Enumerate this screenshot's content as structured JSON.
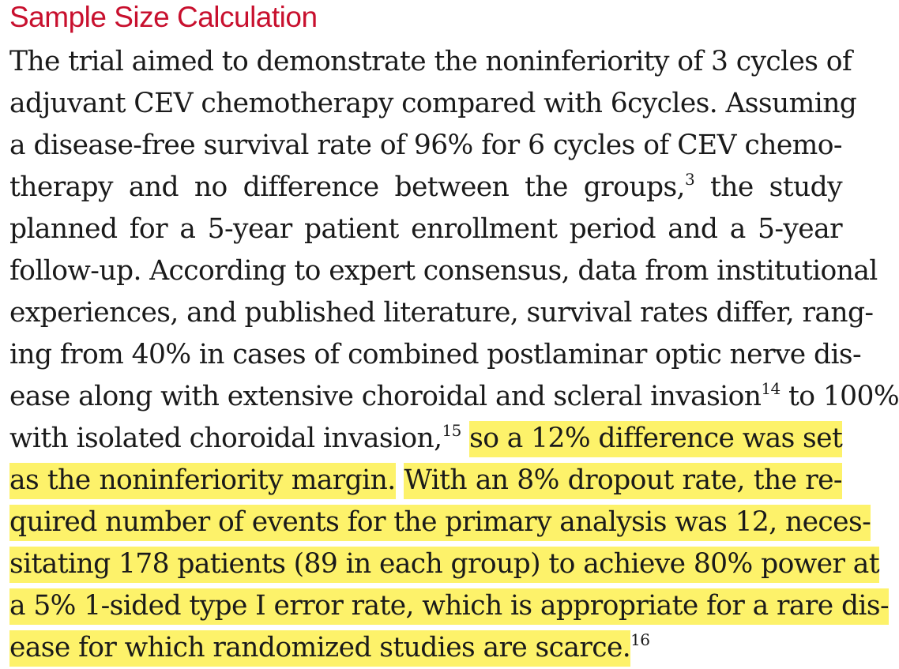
{
  "section_heading": "Sample Size Calculation",
  "lines": [
    [
      {
        "t": "The trial aimed to demonstrate the noninferiority of 3 cycles of"
      }
    ],
    [
      {
        "t": "adjuvant CEV chemotherapy compared with 6cycles. Assuming"
      }
    ],
    [
      {
        "t": "a disease-free survival rate of 96% for 6 cycles of CEV chemo-"
      }
    ],
    [
      {
        "t": "therapy and no difference between the groups,"
      },
      {
        "t": "3",
        "sup": true
      },
      {
        "t": " the study"
      }
    ],
    [
      {
        "t": "planned for a 5-year patient enrollment period and a 5-year"
      }
    ],
    [
      {
        "t": "follow-up. According to expert consensus, data from institutional"
      }
    ],
    [
      {
        "t": "experiences, and published literature, survival rates differ, rang-"
      }
    ],
    [
      {
        "t": "ing from 40% in cases of combined postlaminar optic nerve dis-"
      }
    ],
    [
      {
        "t": "ease along with extensive choroidal and scleral invasion"
      },
      {
        "t": "14",
        "sup": true
      },
      {
        "t": " to 100%"
      }
    ],
    [
      {
        "t": "with isolated choroidal invasion,"
      },
      {
        "t": "15",
        "sup": true
      },
      {
        "t": " "
      },
      {
        "t": "so a 12% difference was set",
        "hl": true
      }
    ],
    [
      {
        "t": "as the noninferiority margin.",
        "hl": true
      },
      {
        "t": " "
      },
      {
        "t": "With an 8% dropout rate, the re-",
        "hl": true
      }
    ],
    [
      {
        "t": "quired number of events for the primary analysis was 12, neces-",
        "hl": true
      }
    ],
    [
      {
        "t": "sitating 178 patients (89 in each group) to achieve 80% power at",
        "hl": true
      }
    ],
    [
      {
        "t": "a 5% 1-sided type I error rate, which is appropriate for a rare dis-",
        "hl": true
      }
    ],
    [
      {
        "t": "ease for which randomized studies are scarce.",
        "hl": true
      },
      {
        "t": "16",
        "sup": true
      }
    ]
  ],
  "colors": {
    "heading": "#c8102e",
    "text": "#1a1a1a",
    "highlight": "#fdf26a",
    "background": "#ffffff"
  }
}
